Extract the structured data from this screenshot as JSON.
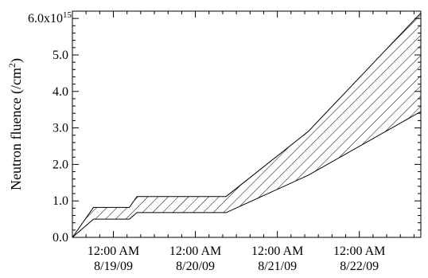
{
  "chart_data": {
    "type": "area",
    "title": "",
    "ylabel": "Neutron fluence (/cm²)",
    "ylabel_parts": {
      "main": "Neutron fluence (/cm",
      "sup": "2",
      "tail": ")"
    },
    "xlabel": "",
    "xlim": [
      "2009-08-18 12:00",
      "2009-08-22 18:00"
    ],
    "ylim": [
      0,
      6200000000000000.0
    ],
    "y_ticks": [
      {
        "value": 0.0,
        "label": "0.0"
      },
      {
        "value": 1000000000000000.0,
        "label": "1.0"
      },
      {
        "value": 2000000000000000.0,
        "label": "2.0"
      },
      {
        "value": 3000000000000000.0,
        "label": "3.0"
      },
      {
        "value": 4000000000000000.0,
        "label": "4.0"
      },
      {
        "value": 5000000000000000.0,
        "label": "5.0"
      },
      {
        "value": 6000000000000000.0,
        "label": "6.0x10",
        "sup": "15"
      }
    ],
    "x_ticks": [
      {
        "x": "2009-08-19 00:00",
        "line1": "12:00 AM",
        "line2": "8/19/09"
      },
      {
        "x": "2009-08-20 00:00",
        "line1": "12:00 AM",
        "line2": "8/20/09"
      },
      {
        "x": "2009-08-21 00:00",
        "line1": "12:00 AM",
        "line2": "8/21/09"
      },
      {
        "x": "2009-08-22 00:00",
        "line1": "12:00 AM",
        "line2": "8/22/09"
      }
    ],
    "grid": false,
    "fill": "diagonal-hatch",
    "series": [
      {
        "points": [
          {
            "x": "2009-08-18 12:00",
            "y": 0.0
          },
          {
            "x": "2009-08-18 18:10",
            "y": 820000000000000.0
          },
          {
            "x": "2009-08-19 04:40",
            "y": 820000000000000.0
          },
          {
            "x": "2009-08-19 06:55",
            "y": 1120000000000000.0
          },
          {
            "x": "2009-08-20 09:00",
            "y": 1120000000000000.0
          },
          {
            "x": "2009-08-21 09:00",
            "y": 2900000000000000.0
          },
          {
            "x": "2009-08-22 18:00",
            "y": 6150000000000000.0
          }
        ]
      },
      {
        "points": [
          {
            "x": "2009-08-18 12:00",
            "y": 0.0
          },
          {
            "x": "2009-08-18 18:10",
            "y": 500000000000000.0
          },
          {
            "x": "2009-08-19 04:40",
            "y": 500000000000000.0
          },
          {
            "x": "2009-08-19 06:55",
            "y": 680000000000000.0
          },
          {
            "x": "2009-08-20 09:00",
            "y": 680000000000000.0
          },
          {
            "x": "2009-08-21 09:00",
            "y": 1700000000000000.0
          },
          {
            "x": "2009-08-22 18:00",
            "y": 3450000000000000.0
          }
        ]
      }
    ]
  }
}
